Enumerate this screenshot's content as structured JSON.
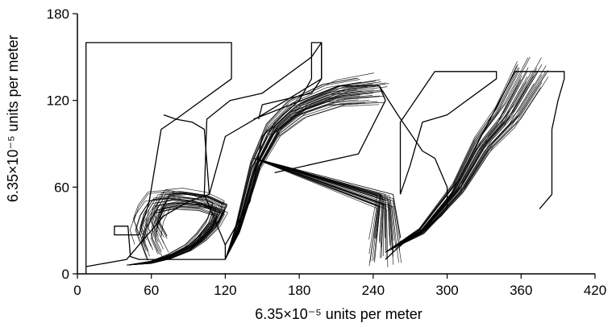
{
  "chart_data": {
    "type": "line",
    "xlabel": "6.35×10⁻⁵ units per meter",
    "ylabel": "6.35×10⁻⁵ units per meter",
    "xlim": [
      0,
      420
    ],
    "ylim": [
      0,
      180
    ],
    "xticks": [
      "0",
      "60",
      "120",
      "180",
      "240",
      "300",
      "360",
      "420"
    ],
    "yticks": [
      "0",
      "60",
      "120",
      "180"
    ],
    "grid": false,
    "line_color": "#000000",
    "outlines": [
      {
        "name": "",
        "points": [
          [
            7,
            0
          ],
          [
            7,
            160
          ],
          [
            125,
            160
          ],
          [
            125,
            135
          ],
          [
            80,
            107
          ],
          [
            68,
            100
          ],
          [
            58,
            49
          ],
          [
            50,
            27
          ],
          [
            30,
            27
          ],
          [
            30,
            33
          ],
          [
            41,
            33
          ],
          [
            43,
            12
          ],
          [
            50,
            10
          ],
          [
            120,
            10
          ],
          [
            120,
            20
          ],
          [
            140,
            50
          ],
          [
            150,
            95
          ],
          [
            167,
            110
          ],
          [
            180,
            120
          ],
          [
            190,
            135
          ],
          [
            190,
            150
          ],
          [
            198,
            160
          ],
          [
            198,
            135
          ],
          [
            150,
            110
          ],
          [
            120,
            95
          ],
          [
            107,
            55
          ],
          [
            90,
            50
          ],
          [
            80,
            45
          ],
          [
            70,
            40
          ],
          [
            50,
            20
          ],
          [
            40,
            10
          ],
          [
            7,
            5
          ]
        ]
      },
      {
        "name": "",
        "points": [
          [
            107,
            55
          ],
          [
            103,
            100
          ],
          [
            93,
            105
          ],
          [
            80,
            107
          ],
          [
            70,
            110
          ]
        ]
      },
      {
        "name": "",
        "points": [
          [
            147,
            107
          ],
          [
            150,
            117
          ],
          [
            190,
            125
          ],
          [
            198,
            135
          ],
          [
            198,
            160
          ],
          [
            190,
            160
          ],
          [
            190,
            150
          ],
          [
            150,
            125
          ],
          [
            124,
            120
          ],
          [
            105,
            107
          ],
          [
            103,
            55
          ],
          [
            120,
            20
          ]
        ]
      },
      {
        "name": "",
        "points": [
          [
            143,
            107
          ],
          [
            212,
            130
          ],
          [
            245,
            130
          ],
          [
            250,
            120
          ],
          [
            228,
            83
          ],
          [
            160,
            70
          ]
        ]
      },
      {
        "name": "",
        "points": [
          [
            245,
            130
          ],
          [
            260,
            110
          ],
          [
            280,
            85
          ],
          [
            290,
            80
          ],
          [
            300,
            60
          ],
          [
            300,
            50
          ],
          [
            300,
            45
          ],
          [
            295,
            40
          ],
          [
            280,
            30
          ],
          [
            270,
            25
          ],
          [
            260,
            18
          ],
          [
            250,
            10
          ]
        ]
      },
      {
        "name": "",
        "points": [
          [
            262,
            55
          ],
          [
            262,
            105
          ],
          [
            290,
            140
          ],
          [
            340,
            140
          ],
          [
            340,
            135
          ],
          [
            300,
            110
          ],
          [
            280,
            105
          ],
          [
            270,
            75
          ],
          [
            262,
            55
          ]
        ]
      },
      {
        "name": "",
        "points": [
          [
            300,
            50
          ],
          [
            355,
            140
          ],
          [
            395,
            140
          ],
          [
            395,
            135
          ],
          [
            390,
            120
          ],
          [
            385,
            100
          ],
          [
            385,
            70
          ],
          [
            385,
            55
          ],
          [
            375,
            45
          ]
        ]
      }
    ],
    "ray_bundles": [
      {
        "name": "",
        "origin_range": [
          [
            8,
            5
          ],
          [
            120,
            10
          ]
        ],
        "points": [
          [
            40,
            6
          ],
          [
            60,
            8
          ],
          [
            75,
            12
          ],
          [
            90,
            18
          ],
          [
            100,
            25
          ],
          [
            110,
            35
          ],
          [
            115,
            45
          ],
          [
            100,
            50
          ],
          [
            80,
            52
          ],
          [
            65,
            50
          ],
          [
            58,
            40
          ],
          [
            55,
            30
          ],
          [
            60,
            20
          ]
        ]
      },
      {
        "name": "",
        "points": [
          [
            120,
            10
          ],
          [
            130,
            30
          ],
          [
            145,
            75
          ],
          [
            160,
            100
          ],
          [
            180,
            115
          ],
          [
            210,
            125
          ],
          [
            240,
            128
          ]
        ]
      },
      {
        "name": "",
        "points": [
          [
            143,
            80
          ],
          [
            250,
            50
          ],
          [
            250,
            15
          ]
        ]
      },
      {
        "name": "",
        "points": [
          [
            250,
            15
          ],
          [
            280,
            30
          ],
          [
            310,
            60
          ],
          [
            330,
            90
          ],
          [
            350,
            110
          ],
          [
            370,
            140
          ]
        ]
      }
    ]
  }
}
